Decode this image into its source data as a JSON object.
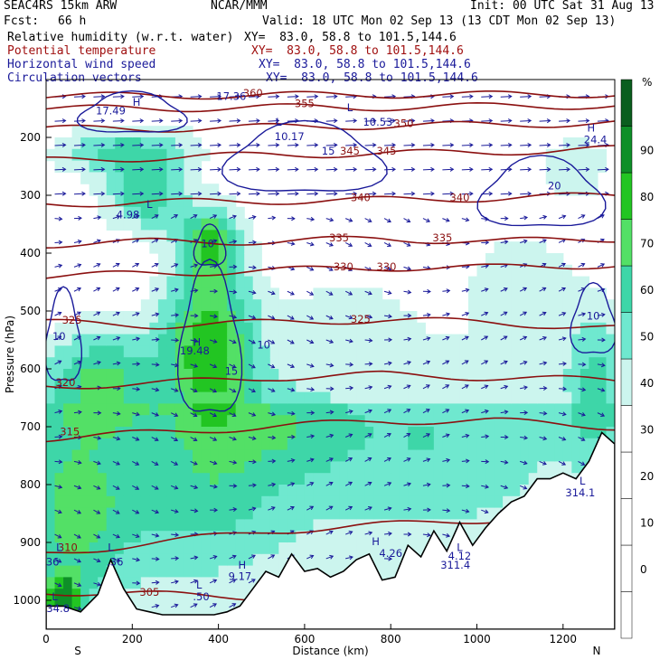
{
  "header": {
    "model": "SEAC4RS 15km ARW",
    "org": "NCAR/MMM",
    "init": "Init: 00 UTC Sat 31 Aug 13",
    "fcst_label": "Fcst:",
    "fcst_value": "66 h",
    "valid": "Valid: 18 UTC Mon 02 Sep 13 (13 CDT Mon 02 Sep 13)"
  },
  "fields": [
    {
      "name": "Relative humidity (w.r.t. water)",
      "xy": "XY=  83.0, 58.8 to 101.5,144.6",
      "color": "#000000"
    },
    {
      "name": "Potential temperature",
      "xy": "XY=  83.0, 58.8 to 101.5,144.6",
      "color": "#a01010"
    },
    {
      "name": "Horizontal wind speed",
      "xy": "XY=  83.0, 58.8 to 101.5,144.6",
      "color": "#1a1a9a"
    },
    {
      "name": "Circulation vectors",
      "xy": "XY=  83.0, 58.8 to 101.5,144.6",
      "color": "#1a1a9a"
    }
  ],
  "colors": {
    "rh_levels": [
      "#ffffff",
      "#ffffff",
      "#ffffff",
      "#ffffff",
      "#ffffff",
      "#ccf5ee",
      "#6fe8cf",
      "#3ed6a8",
      "#53e066",
      "#22c522",
      "#0e8f28",
      "#0a5e1e"
    ],
    "theta": "#8b1010",
    "wind": "#1a1a9a"
  },
  "colorbar": {
    "unit": "%",
    "labels": [
      "0",
      "10",
      "20",
      "30",
      "40",
      "50",
      "60",
      "70",
      "80",
      "90"
    ]
  },
  "chart_data": {
    "type": "heatmap",
    "xlabel": "Distance (km)",
    "ylabel": "Pressure (hPa)",
    "xlim": [
      0,
      1320
    ],
    "ylim": [
      1050,
      100
    ],
    "x_ticks": [
      "0",
      "200",
      "400",
      "600",
      "800",
      "1000",
      "1200"
    ],
    "y_ticks": [
      "200",
      "300",
      "400",
      "500",
      "600",
      "700",
      "800",
      "900",
      "1000"
    ],
    "x_ends": [
      "S",
      "N"
    ],
    "terrain_surface": {
      "x": [
        0,
        40,
        80,
        120,
        150,
        180,
        210,
        240,
        270,
        300,
        330,
        360,
        390,
        420,
        450,
        480,
        510,
        540,
        570,
        600,
        630,
        660,
        690,
        720,
        750,
        780,
        810,
        840,
        870,
        900,
        930,
        960,
        990,
        1020,
        1050,
        1080,
        1110,
        1140,
        1170,
        1200,
        1230,
        1260,
        1290,
        1320
      ],
      "p": [
        1010,
        1010,
        1020,
        990,
        930,
        980,
        1015,
        1020,
        1025,
        1025,
        1025,
        1025,
        1025,
        1020,
        1010,
        980,
        950,
        960,
        920,
        950,
        945,
        960,
        950,
        930,
        920,
        965,
        960,
        905,
        925,
        880,
        915,
        865,
        905,
        875,
        850,
        830,
        820,
        790,
        790,
        780,
        790,
        760,
        710,
        730
      ]
    },
    "theta_contours": [
      {
        "label": "305",
        "p": [
          985,
          990,
          995,
          1000,
          1000,
          1000
        ]
      },
      {
        "label": "310",
        "p": [
          920,
          900,
          880,
          870,
          860,
          840
        ]
      },
      {
        "label": "315",
        "p": [
          720,
          710,
          700,
          690,
          690,
          700
        ]
      },
      {
        "label": "320",
        "p": [
          630,
          625,
          615,
          610,
          615,
          620
        ]
      },
      {
        "label": "325",
        "p": [
          520,
          525,
          520,
          515,
          520,
          530
        ]
      },
      {
        "label": "330",
        "p": [
          440,
          435,
          430,
          425,
          425,
          420
        ]
      },
      {
        "label": "335",
        "p": [
          385,
          380,
          380,
          375,
          380,
          375
        ]
      },
      {
        "label": "340",
        "p": [
          315,
          312,
          310,
          308,
          305,
          300
        ]
      },
      {
        "label": "345",
        "p": [
          240,
          235,
          230,
          228,
          225,
          220
        ]
      },
      {
        "label": "350",
        "p": [
          185,
          185,
          182,
          180,
          178,
          175
        ]
      },
      {
        "label": "355",
        "p": [
          150,
          150,
          148,
          148,
          146,
          145
        ]
      },
      {
        "label": "360",
        "p": [
          128,
          128,
          127,
          126,
          126,
          125
        ]
      }
    ],
    "theta_contour_x": [
      0,
      260,
      520,
      780,
      1040,
      1320
    ],
    "theta_labels": [
      {
        "text": "305",
        "x": 240,
        "p": 992
      },
      {
        "text": "310",
        "x": 50,
        "p": 915
      },
      {
        "text": "315",
        "x": 55,
        "p": 715
      },
      {
        "text": "320",
        "x": 45,
        "p": 630
      },
      {
        "text": "325",
        "x": 60,
        "p": 522
      },
      {
        "text": "325",
        "x": 730,
        "p": 520
      },
      {
        "text": "330",
        "x": 690,
        "p": 430
      },
      {
        "text": "330",
        "x": 790,
        "p": 430
      },
      {
        "text": "335",
        "x": 680,
        "p": 380
      },
      {
        "text": "335",
        "x": 920,
        "p": 380
      },
      {
        "text": "340",
        "x": 730,
        "p": 310
      },
      {
        "text": "340",
        "x": 960,
        "p": 310
      },
      {
        "text": "345",
        "x": 705,
        "p": 230
      },
      {
        "text": "345",
        "x": 790,
        "p": 230
      },
      {
        "text": "350",
        "x": 830,
        "p": 182
      },
      {
        "text": "355",
        "x": 600,
        "p": 148
      },
      {
        "text": "360",
        "x": 480,
        "p": 130
      }
    ],
    "wind_labels": [
      {
        "text": "10",
        "x": 30,
        "p": 550
      },
      {
        "text": "10",
        "x": 375,
        "p": 390
      },
      {
        "text": "10",
        "x": 505,
        "p": 565
      },
      {
        "text": "15",
        "x": 430,
        "p": 610
      },
      {
        "text": "15",
        "x": 655,
        "p": 230
      },
      {
        "text": "10",
        "x": 1270,
        "p": 515
      },
      {
        "text": "20",
        "x": 1180,
        "p": 290
      },
      {
        "text": "36",
        "x": 15,
        "p": 940
      },
      {
        "text": "4.98",
        "x": 190,
        "p": 340
      },
      {
        "text": "19.48",
        "x": 345,
        "p": 575
      },
      {
        "text": "17.36",
        "x": 430,
        "p": 135
      },
      {
        "text": "17.49",
        "x": 150,
        "p": 160
      },
      {
        "text": "10.17",
        "x": 565,
        "p": 205
      },
      {
        "text": "10.53",
        "x": 770,
        "p": 180
      },
      {
        "text": "24.4",
        "x": 1275,
        "p": 210
      },
      {
        "text": "4.26",
        "x": 800,
        "p": 925
      },
      {
        "text": "4.12",
        "x": 960,
        "p": 930
      },
      {
        "text": "9.17",
        "x": 450,
        "p": 965
      },
      {
        "text": ".50",
        "x": 360,
        "p": 1000
      },
      {
        "text": ".36",
        "x": 160,
        "p": 940
      },
      {
        "text": "311.4",
        "x": 950,
        "p": 945
      },
      {
        "text": "314.1",
        "x": 1240,
        "p": 820
      },
      {
        "text": "334.8",
        "x": 20,
        "p": 1020
      }
    ],
    "extrema": [
      {
        "text": "H",
        "x": 210,
        "p": 145
      },
      {
        "text": "H",
        "x": 1265,
        "p": 190
      },
      {
        "text": "H",
        "x": 350,
        "p": 560
      },
      {
        "text": "H",
        "x": 455,
        "p": 945
      },
      {
        "text": "H",
        "x": 765,
        "p": 905
      },
      {
        "text": "L",
        "x": 240,
        "p": 322
      },
      {
        "text": "L",
        "x": 540,
        "p": 180
      },
      {
        "text": "L",
        "x": 705,
        "p": 155
      },
      {
        "text": "L",
        "x": 30,
        "p": 915
      },
      {
        "text": "L",
        "x": 150,
        "p": 915
      },
      {
        "text": "L",
        "x": 355,
        "p": 980
      },
      {
        "text": "L",
        "x": 960,
        "p": 915
      },
      {
        "text": "L",
        "x": 1245,
        "p": 800
      },
      {
        "text": "L",
        "x": 20,
        "p": 1000
      }
    ]
  }
}
